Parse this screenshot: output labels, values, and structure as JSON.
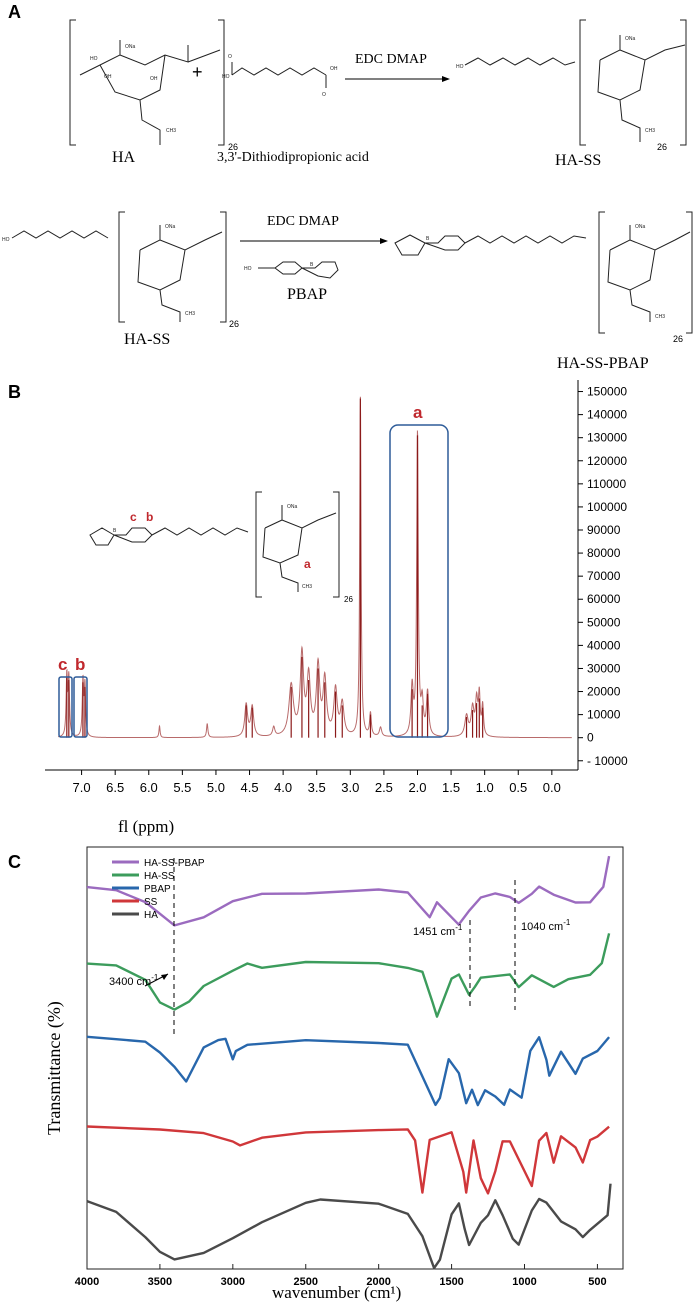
{
  "panels": {
    "a": "A",
    "b": "B",
    "c": "C"
  },
  "scheme": {
    "row1": {
      "ha_label": "HA",
      "plus": "+",
      "reagent_label": "3,3'-Dithiodipropionic acid",
      "conditions": "EDC DMAP",
      "product_label": "HA-SS",
      "repeat_n": "26"
    },
    "row2": {
      "start_label": "HA-SS",
      "conditions": "EDC DMAP",
      "reagent_label": "PBAP",
      "product_label": "HA-SS-PBAP",
      "repeat_n": "26"
    }
  },
  "nmr_labels": {
    "peak_a": "a",
    "peak_b": "b",
    "peak_c": "c",
    "struct_a": "a",
    "struct_b": "b",
    "struct_c": "c",
    "repeat_n": "26"
  },
  "chart_data": [
    {
      "type": "line",
      "id": "nmr",
      "title": "",
      "xlabel": "fl (ppm)",
      "ylabel": "",
      "xlim": [
        7.5,
        -0.3
      ],
      "ylim": [
        -14000,
        155000
      ],
      "x_ticks": [
        7.0,
        6.5,
        6.0,
        5.5,
        5.0,
        4.5,
        4.0,
        3.5,
        3.0,
        2.5,
        2.0,
        1.5,
        1.0,
        0.5,
        0.0
      ],
      "x_tick_labels": [
        "7.0",
        "6.5",
        "6.0",
        "5.5",
        "5.0",
        "4.5",
        "4.0",
        "3.5",
        "3.0",
        "2.5",
        "2.0",
        "1.5",
        "1.0",
        "0.5",
        "0.0"
      ],
      "y_ticks": [
        150000,
        140000,
        130000,
        120000,
        110000,
        100000,
        90000,
        80000,
        70000,
        60000,
        50000,
        40000,
        30000,
        20000,
        10000,
        0,
        -10000
      ],
      "y_tick_labels": [
        "150000",
        "140000",
        "130000",
        "120000",
        "110000",
        "100000",
        "90000",
        "80000",
        "70000",
        "60000",
        "50000",
        "40000",
        "30000",
        "20000",
        "10000",
        "0",
        "- 10000"
      ],
      "peaks": [
        {
          "ppm": 7.22,
          "height": 26000,
          "width": 0.012
        },
        {
          "ppm": 7.19,
          "height": 25000,
          "width": 0.012
        },
        {
          "ppm": 6.98,
          "height": 24000,
          "width": 0.012
        },
        {
          "ppm": 6.95,
          "height": 22000,
          "width": 0.012
        },
        {
          "ppm": 5.84,
          "height": 5000,
          "width": 0.01
        },
        {
          "ppm": 5.13,
          "height": 6000,
          "width": 0.012
        },
        {
          "ppm": 4.55,
          "height": 14000,
          "width": 0.025
        },
        {
          "ppm": 4.46,
          "height": 13000,
          "width": 0.025
        },
        {
          "ppm": 4.14,
          "height": 4000,
          "width": 0.02
        },
        {
          "ppm": 3.88,
          "height": 22000,
          "width": 0.04
        },
        {
          "ppm": 3.72,
          "height": 35000,
          "width": 0.03
        },
        {
          "ppm": 3.62,
          "height": 25000,
          "width": 0.03
        },
        {
          "ppm": 3.48,
          "height": 30000,
          "width": 0.03
        },
        {
          "ppm": 3.38,
          "height": 24000,
          "width": 0.03
        },
        {
          "ppm": 3.22,
          "height": 20000,
          "width": 0.03
        },
        {
          "ppm": 3.12,
          "height": 14000,
          "width": 0.03
        },
        {
          "ppm": 2.85,
          "height": 147000,
          "width": 0.012
        },
        {
          "ppm": 2.7,
          "height": 10000,
          "width": 0.015
        },
        {
          "ppm": 2.55,
          "height": 4000,
          "width": 0.02
        },
        {
          "ppm": 2.08,
          "height": 21000,
          "width": 0.02
        },
        {
          "ppm": 2.0,
          "height": 131000,
          "width": 0.014
        },
        {
          "ppm": 1.93,
          "height": 14000,
          "width": 0.02
        },
        {
          "ppm": 1.85,
          "height": 19000,
          "width": 0.02
        },
        {
          "ppm": 1.27,
          "height": 9000,
          "width": 0.03
        },
        {
          "ppm": 1.18,
          "height": 12000,
          "width": 0.025
        },
        {
          "ppm": 1.12,
          "height": 15000,
          "width": 0.02
        },
        {
          "ppm": 1.08,
          "height": 17000,
          "width": 0.015
        },
        {
          "ppm": 1.03,
          "height": 13000,
          "width": 0.015
        }
      ]
    },
    {
      "type": "line",
      "id": "ftir",
      "title": "",
      "xlabel": "wavenumber  (cm¹)",
      "ylabel": "Transmittance (%)",
      "xlim": [
        4000,
        400
      ],
      "x_ticks": [
        4000,
        3500,
        3000,
        2500,
        2000,
        1500,
        1000,
        500
      ],
      "x_tick_labels": [
        "4000",
        "3500",
        "3000",
        "2500",
        "2000",
        "1500",
        "1000",
        "500"
      ],
      "legend": [
        "HA-SS-PBAP",
        "HA-SS",
        "PBAP",
        "SS",
        "HA"
      ],
      "legend_position": "top-left",
      "annotations": [
        "1451 cm",
        "1040 cm",
        "3400 cm"
      ],
      "annotation_superscript": "-1",
      "series": [
        {
          "name": "HA-SS-PBAP",
          "color": "#9b6bbf",
          "points": [
            [
              4000,
              0
            ],
            [
              3800,
              0.5
            ],
            [
              3600,
              2
            ],
            [
              3400,
              5
            ],
            [
              3200,
              4
            ],
            [
              3000,
              2
            ],
            [
              2800,
              1.0
            ],
            [
              2500,
              0.8
            ],
            [
              2000,
              0.5
            ],
            [
              1800,
              0.8
            ],
            [
              1650,
              4
            ],
            [
              1600,
              2
            ],
            [
              1451,
              5
            ],
            [
              1380,
              3
            ],
            [
              1300,
              1.5
            ],
            [
              1200,
              1.0
            ],
            [
              1100,
              1.5
            ],
            [
              1040,
              2
            ],
            [
              950,
              1.0
            ],
            [
              900,
              0
            ],
            [
              800,
              1.0
            ],
            [
              650,
              2
            ],
            [
              550,
              2
            ],
            [
              460,
              0
            ],
            [
              420,
              -4
            ]
          ]
        },
        {
          "name": "HA-SS",
          "color": "#3c9c5c",
          "points": [
            [
              4000,
              0
            ],
            [
              3800,
              0.2
            ],
            [
              3600,
              2
            ],
            [
              3500,
              5
            ],
            [
              3400,
              6
            ],
            [
              3300,
              5
            ],
            [
              3200,
              3
            ],
            [
              3000,
              1
            ],
            [
              2900,
              0
            ],
            [
              2800,
              0.5
            ],
            [
              2500,
              -0.3
            ],
            [
              2000,
              0
            ],
            [
              1800,
              0.5
            ],
            [
              1700,
              1
            ],
            [
              1630,
              5
            ],
            [
              1600,
              7
            ],
            [
              1500,
              2
            ],
            [
              1450,
              1.5
            ],
            [
              1380,
              4
            ],
            [
              1340,
              3
            ],
            [
              1300,
              2
            ],
            [
              1100,
              1.5
            ],
            [
              1040,
              3
            ],
            [
              950,
              1.5
            ],
            [
              800,
              3
            ],
            [
              700,
              2
            ],
            [
              550,
              1.5
            ],
            [
              470,
              0
            ],
            [
              420,
              -4
            ]
          ]
        },
        {
          "name": "PBAP",
          "color": "#2867ac",
          "points": [
            [
              4000,
              0
            ],
            [
              3800,
              0.2
            ],
            [
              3600,
              0.5
            ],
            [
              3500,
              2
            ],
            [
              3400,
              4
            ],
            [
              3320,
              6
            ],
            [
              3200,
              1.5
            ],
            [
              3100,
              0.5
            ],
            [
              3050,
              0.3
            ],
            [
              3000,
              3
            ],
            [
              2980,
              2
            ],
            [
              2900,
              1
            ],
            [
              2500,
              0.5
            ],
            [
              2000,
              0.8
            ],
            [
              1800,
              1
            ],
            [
              1610,
              9
            ],
            [
              1580,
              8
            ],
            [
              1520,
              3
            ],
            [
              1450,
              5
            ],
            [
              1400,
              9
            ],
            [
              1360,
              7
            ],
            [
              1320,
              9
            ],
            [
              1270,
              7
            ],
            [
              1200,
              8
            ],
            [
              1140,
              9
            ],
            [
              1100,
              7
            ],
            [
              1020,
              8
            ],
            [
              960,
              2
            ],
            [
              900,
              0
            ],
            [
              850,
              3
            ],
            [
              830,
              5
            ],
            [
              750,
              2
            ],
            [
              650,
              5
            ],
            [
              600,
              3
            ],
            [
              500,
              2
            ],
            [
              420,
              0
            ]
          ]
        },
        {
          "name": "SS",
          "color": "#d0373a",
          "points": [
            [
              4000,
              0
            ],
            [
              3500,
              0.5
            ],
            [
              3200,
              1.0
            ],
            [
              3000,
              2
            ],
            [
              2950,
              2.5
            ],
            [
              2800,
              1.5
            ],
            [
              2500,
              1.0
            ],
            [
              2000,
              0.5
            ],
            [
              1800,
              0.5
            ],
            [
              1750,
              2
            ],
            [
              1700,
              9
            ],
            [
              1650,
              2
            ],
            [
              1500,
              1.0
            ],
            [
              1420,
              6
            ],
            [
              1400,
              9
            ],
            [
              1350,
              2
            ],
            [
              1300,
              7
            ],
            [
              1250,
              9
            ],
            [
              1200,
              6
            ],
            [
              1150,
              2
            ],
            [
              1100,
              2
            ],
            [
              950,
              8
            ],
            [
              900,
              2
            ],
            [
              850,
              1.0
            ],
            [
              800,
              5
            ],
            [
              750,
              1.5
            ],
            [
              650,
              3
            ],
            [
              600,
              5
            ],
            [
              550,
              2
            ],
            [
              500,
              1.5
            ],
            [
              420,
              0
            ]
          ]
        },
        {
          "name": "HA",
          "color": "#4a4a4a",
          "points": [
            [
              4000,
              0
            ],
            [
              3800,
              1.5
            ],
            [
              3600,
              5
            ],
            [
              3500,
              7
            ],
            [
              3400,
              8
            ],
            [
              3200,
              7
            ],
            [
              3000,
              5
            ],
            [
              2800,
              3
            ],
            [
              2500,
              0.5
            ],
            [
              2400,
              0
            ],
            [
              2000,
              0.5
            ],
            [
              1800,
              2
            ],
            [
              1700,
              5
            ],
            [
              1620,
              9
            ],
            [
              1580,
              8
            ],
            [
              1500,
              2
            ],
            [
              1450,
              0.5
            ],
            [
              1410,
              4
            ],
            [
              1380,
              6
            ],
            [
              1300,
              3
            ],
            [
              1250,
              2
            ],
            [
              1200,
              0
            ],
            [
              1150,
              2
            ],
            [
              1080,
              5
            ],
            [
              1040,
              6
            ],
            [
              950,
              1.5
            ],
            [
              900,
              0
            ],
            [
              850,
              0.5
            ],
            [
              750,
              3
            ],
            [
              650,
              4
            ],
            [
              600,
              5
            ],
            [
              550,
              4
            ],
            [
              430,
              2
            ],
            [
              410,
              -2
            ]
          ]
        }
      ]
    }
  ]
}
